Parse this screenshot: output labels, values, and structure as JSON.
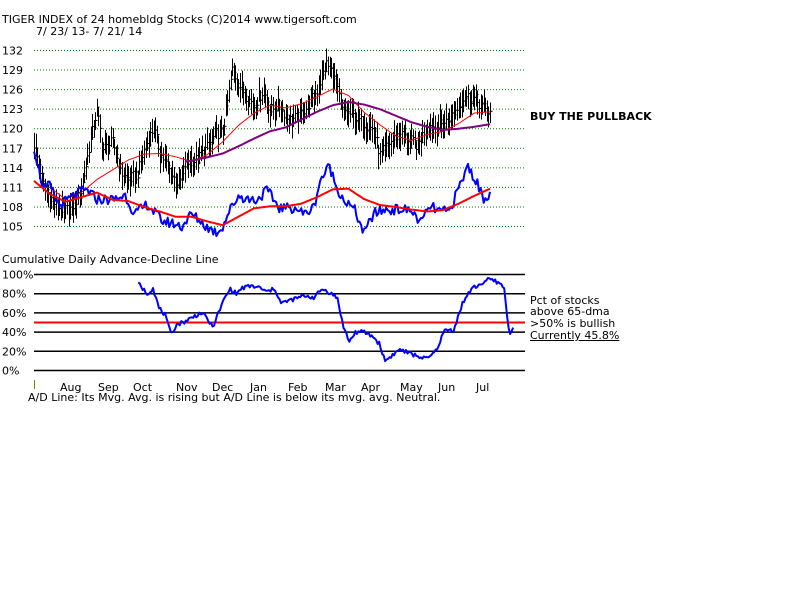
{
  "header": {
    "title": "TIGER INDEX of  24 homebldg Stocks  (C)2014  www.tigersoft.com",
    "date_range": "7/ 23/ 13- 7/ 21/ 14"
  },
  "annotations": {
    "signal": "BUY THE PULLBACK",
    "panel2_title": "Cumulative Daily Advance-Decline Line",
    "pct_line1": "Pct of stocks",
    "pct_line2": "above 65-dma",
    "pct_line3": ">50% is bullish",
    "pct_current": "Currently  45.8%",
    "footer": "A/D Line: Its Mvg. Avg. is rising but A/D Line is below its mvg. avg. Neutral."
  },
  "colors": {
    "price": "#000000",
    "ad_line": "#0000ff",
    "ma_short": "#ff0000",
    "ma_long": "#800080",
    "grid_dotted": "#008000",
    "threshold": "#ff0000"
  },
  "chart_data": [
    {
      "type": "line",
      "title": "TIGER INDEX of 24 homebldg Stocks",
      "x_axis": "trading days 7/23/13 - 7/21/14",
      "ylim": [
        102,
        133
      ],
      "y_ticks": [
        "105",
        "108",
        "111",
        "114",
        "117",
        "120",
        "123",
        "126",
        "129",
        "132"
      ],
      "months": [
        "Aug",
        "Sep",
        "Oct",
        "Nov",
        "Dec",
        "Jan",
        "Feb",
        "Mar",
        "Apr",
        "May",
        "Jun",
        "Jul"
      ],
      "series": [
        {
          "role": "price_close",
          "style": "high-low bars",
          "anchors": [
            [
              0,
              117.6
            ],
            [
              6,
              111.5
            ],
            [
              12,
              108.8
            ],
            [
              18,
              107.4
            ],
            [
              24,
              107.8
            ],
            [
              30,
              110.3
            ],
            [
              36,
              118.4
            ],
            [
              40,
              122.8
            ],
            [
              44,
              116.8
            ],
            [
              50,
              117.9
            ],
            [
              56,
              113.1
            ],
            [
              60,
              112.1
            ],
            [
              66,
              113.2
            ],
            [
              70,
              116.6
            ],
            [
              76,
              120.2
            ],
            [
              80,
              116.3
            ],
            [
              88,
              112.8
            ],
            [
              92,
              111.3
            ],
            [
              96,
              114.4
            ],
            [
              104,
              115.3
            ],
            [
              110,
              117.1
            ],
            [
              116,
              119.3
            ],
            [
              120,
              119.4
            ],
            [
              126,
              129.0
            ],
            [
              132,
              126.0
            ],
            [
              140,
              123.5
            ],
            [
              146,
              126.0
            ],
            [
              150,
              122.8
            ],
            [
              156,
              123.6
            ],
            [
              162,
              121.3
            ],
            [
              168,
              121.8
            ],
            [
              174,
              123.4
            ],
            [
              180,
              125.8
            ],
            [
              186,
              129.9
            ],
            [
              190,
              128.5
            ],
            [
              196,
              122.9
            ],
            [
              204,
              121.8
            ],
            [
              210,
              120.8
            ],
            [
              216,
              119.8
            ],
            [
              220,
              115.9
            ],
            [
              226,
              117.8
            ],
            [
              232,
              119.3
            ],
            [
              238,
              118.4
            ],
            [
              244,
              117.4
            ],
            [
              250,
              120.6
            ],
            [
              256,
              120.2
            ],
            [
              262,
              121.1
            ],
            [
              268,
              122.8
            ],
            [
              274,
              125.0
            ],
            [
              280,
              124.6
            ],
            [
              286,
              123.1
            ],
            [
              290,
              122.4
            ]
          ],
          "range_half": 2.2
        },
        {
          "role": "ma_short",
          "name": "",
          "color": "#ff0000",
          "anchors": [
            [
              0,
              111.0
            ],
            [
              10,
              111.0
            ],
            [
              20,
              109.2
            ],
            [
              30,
              110.2
            ],
            [
              40,
              112.2
            ],
            [
              50,
              113.7
            ],
            [
              60,
              115.2
            ],
            [
              70,
              116.1
            ],
            [
              80,
              116.2
            ],
            [
              90,
              115.7
            ],
            [
              100,
              115.0
            ],
            [
              110,
              116.0
            ],
            [
              120,
              118.0
            ],
            [
              130,
              120.5
            ],
            [
              140,
              122.4
            ],
            [
              150,
              123.6
            ],
            [
              160,
              123.2
            ],
            [
              170,
              123.8
            ],
            [
              180,
              124.9
            ],
            [
              190,
              126.1
            ],
            [
              200,
              125.1
            ],
            [
              210,
              122.5
            ],
            [
              220,
              120.6
            ],
            [
              230,
              118.9
            ],
            [
              240,
              118.2
            ],
            [
              250,
              119.1
            ],
            [
              260,
              119.6
            ],
            [
              270,
              120.8
            ],
            [
              280,
              122.4
            ],
            [
              290,
              122.6
            ]
          ]
        },
        {
          "role": "ma_long",
          "name": "",
          "color": "#800080",
          "anchors": [
            [
              96,
              114.9
            ],
            [
              110,
              115.6
            ],
            [
              120,
              116.2
            ],
            [
              130,
              117.3
            ],
            [
              140,
              118.5
            ],
            [
              150,
              119.6
            ],
            [
              160,
              120.2
            ],
            [
              170,
              121.4
            ],
            [
              180,
              122.6
            ],
            [
              190,
              123.6
            ],
            [
              200,
              124.1
            ],
            [
              210,
              123.7
            ],
            [
              220,
              123.0
            ],
            [
              230,
              122.0
            ],
            [
              240,
              121.0
            ],
            [
              250,
              120.3
            ],
            [
              260,
              119.8
            ],
            [
              270,
              120.0
            ],
            [
              280,
              120.3
            ],
            [
              290,
              120.7
            ]
          ]
        }
      ]
    },
    {
      "type": "line",
      "title": "Cumulative Daily Advance-Decline Line",
      "series": [
        {
          "role": "ad_line",
          "color": "#0000ff",
          "anchors": [
            [
              0,
              117.2
            ],
            [
              6,
              110.7
            ],
            [
              10,
              111.3
            ],
            [
              16,
              108.2
            ],
            [
              22,
              109.2
            ],
            [
              30,
              110.4
            ],
            [
              34,
              110.5
            ],
            [
              40,
              109.2
            ],
            [
              50,
              109.1
            ],
            [
              58,
              109.8
            ],
            [
              64,
              106.9
            ],
            [
              72,
              108.4
            ],
            [
              82,
              105.8
            ],
            [
              88,
              105.5
            ],
            [
              94,
              105.0
            ],
            [
              100,
              106.9
            ],
            [
              104,
              106.2
            ],
            [
              110,
              104.9
            ],
            [
              116,
              104.1
            ],
            [
              120,
              105.0
            ],
            [
              124,
              107.3
            ],
            [
              130,
              109.7
            ],
            [
              136,
              109.2
            ],
            [
              142,
              109.1
            ],
            [
              148,
              110.6
            ],
            [
              156,
              107.9
            ],
            [
              162,
              107.8
            ],
            [
              166,
              107.9
            ],
            [
              172,
              106.9
            ],
            [
              178,
              108.0
            ],
            [
              182,
              112.1
            ],
            [
              188,
              114.3
            ],
            [
              192,
              111.2
            ],
            [
              198,
              108.8
            ],
            [
              204,
              107.5
            ],
            [
              210,
              103.9
            ],
            [
              216,
              107.0
            ],
            [
              222,
              107.5
            ],
            [
              228,
              107.6
            ],
            [
              234,
              107.6
            ],
            [
              240,
              107.4
            ],
            [
              246,
              105.6
            ],
            [
              252,
              108.1
            ],
            [
              258,
              107.3
            ],
            [
              264,
              107.3
            ],
            [
              270,
              110.8
            ],
            [
              276,
              114.3
            ],
            [
              282,
              111.5
            ],
            [
              286,
              109.3
            ],
            [
              290,
              110.2
            ]
          ]
        },
        {
          "role": "ad_ma",
          "color": "#ff0000",
          "anchors": [
            [
              0,
              112.0
            ],
            [
              10,
              110.0
            ],
            [
              20,
              108.8
            ],
            [
              30,
              109.5
            ],
            [
              40,
              110.2
            ],
            [
              50,
              109.1
            ],
            [
              60,
              108.9
            ],
            [
              70,
              108.0
            ],
            [
              80,
              107.3
            ],
            [
              90,
              106.5
            ],
            [
              100,
              106.5
            ],
            [
              110,
              105.8
            ],
            [
              120,
              105.2
            ],
            [
              130,
              106.5
            ],
            [
              140,
              107.8
            ],
            [
              150,
              108.1
            ],
            [
              160,
              108.1
            ],
            [
              170,
              108.5
            ],
            [
              180,
              109.5
            ],
            [
              190,
              110.7
            ],
            [
              200,
              110.8
            ],
            [
              210,
              109.2
            ],
            [
              220,
              108.3
            ],
            [
              230,
              108.0
            ],
            [
              240,
              107.6
            ],
            [
              250,
              107.3
            ],
            [
              260,
              107.5
            ],
            [
              270,
              108.5
            ],
            [
              280,
              109.7
            ],
            [
              290,
              110.8
            ]
          ]
        }
      ]
    },
    {
      "type": "line",
      "title": "Pct of stocks above 65-dma",
      "ylim": [
        0,
        100
      ],
      "y_ticks": [
        "0%",
        "20%",
        "40%",
        "60%",
        "80%",
        "100%"
      ],
      "threshold": 50,
      "current": 45.8,
      "series": [
        {
          "role": "pct_above_65dma",
          "color": "#0000ff",
          "anchors": [
            [
              70,
              91
            ],
            [
              76,
              80
            ],
            [
              80,
              86
            ],
            [
              84,
              65
            ],
            [
              88,
              58
            ],
            [
              92,
              38
            ],
            [
              96,
              48
            ],
            [
              100,
              50
            ],
            [
              106,
              55
            ],
            [
              112,
              60
            ],
            [
              116,
              55
            ],
            [
              120,
              45
            ],
            [
              124,
              60
            ],
            [
              128,
              75
            ],
            [
              132,
              85
            ],
            [
              136,
              80
            ],
            [
              140,
              86
            ],
            [
              146,
              88
            ],
            [
              152,
              86
            ],
            [
              156,
              82
            ],
            [
              162,
              85
            ],
            [
              166,
              70
            ],
            [
              170,
              72
            ],
            [
              176,
              75
            ],
            [
              182,
              78
            ],
            [
              188,
              76
            ],
            [
              194,
              85
            ],
            [
              200,
              80
            ],
            [
              204,
              75
            ],
            [
              208,
              45
            ],
            [
              212,
              30
            ],
            [
              216,
              40
            ],
            [
              222,
              40
            ],
            [
              228,
              35
            ],
            [
              232,
              28
            ],
            [
              236,
              10
            ],
            [
              240,
              15
            ],
            [
              246,
              22
            ],
            [
              252,
              18
            ],
            [
              258,
              15
            ],
            [
              264,
              12
            ],
            [
              270,
              20
            ],
            [
              276,
              42
            ],
            [
              282,
              42
            ],
            [
              288,
              70
            ],
            [
              294,
              85
            ],
            [
              300,
              90
            ],
            [
              306,
              95
            ],
            [
              312,
              92
            ],
            [
              316,
              86
            ],
            [
              318,
              55
            ],
            [
              320,
              38
            ],
            [
              322,
              46
            ]
          ]
        }
      ]
    }
  ]
}
